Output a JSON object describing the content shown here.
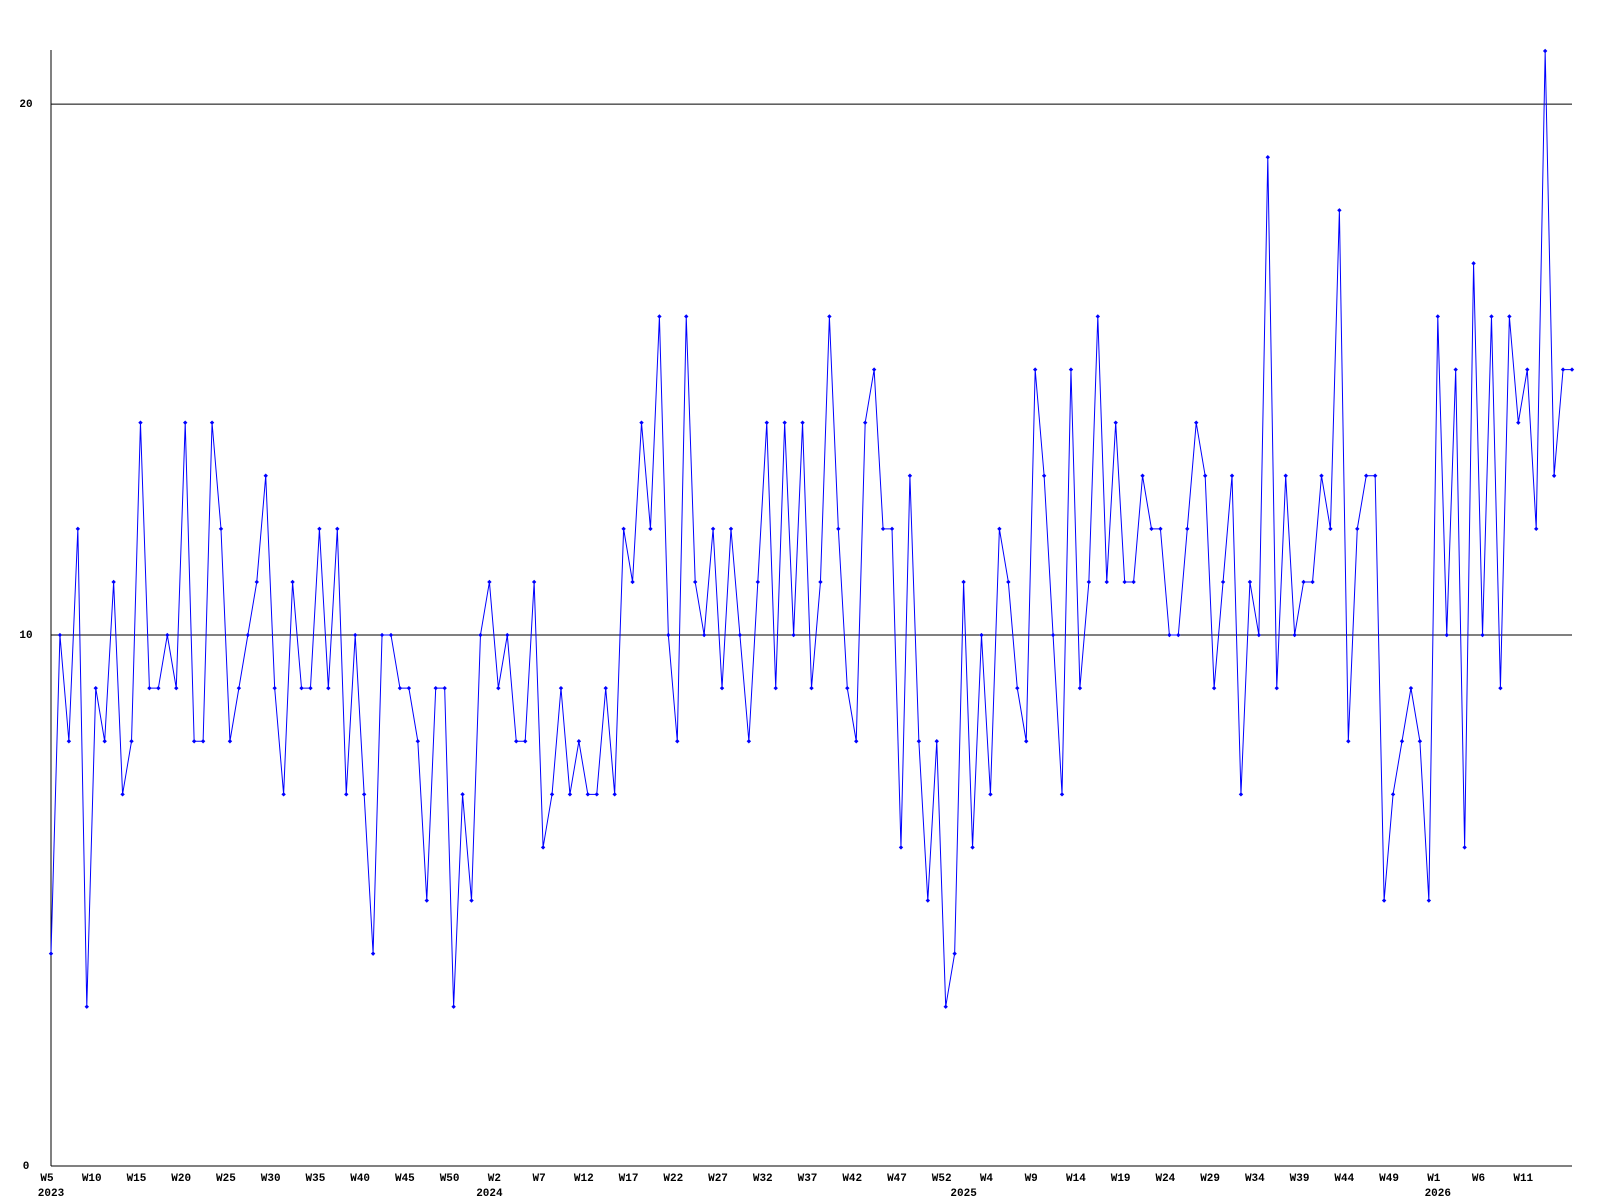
{
  "chart_data": {
    "type": "line",
    "categories": [
      "W5",
      null,
      null,
      null,
      null,
      "W10",
      null,
      null,
      null,
      null,
      "W15",
      null,
      null,
      null,
      null,
      "W20",
      null,
      null,
      null,
      null,
      "W25",
      null,
      null,
      null,
      null,
      "W30",
      null,
      null,
      null,
      null,
      "W35",
      null,
      null,
      null,
      null,
      "W40",
      null,
      null,
      null,
      null,
      "W45",
      null,
      null,
      null,
      null,
      "W50",
      null,
      null,
      null,
      null,
      "W2",
      null,
      null,
      null,
      null,
      "W7",
      null,
      null,
      null,
      null,
      "W12",
      null,
      null,
      null,
      null,
      "W17",
      null,
      null,
      null,
      null,
      "W22",
      null,
      null,
      null,
      null,
      "W27",
      null,
      null,
      null,
      null,
      "W32",
      null,
      null,
      null,
      null,
      "W37",
      null,
      null,
      null,
      null,
      "W42",
      null,
      null,
      null,
      null,
      "W47",
      null,
      null,
      null,
      null,
      "W52",
      null,
      null,
      null,
      null,
      "W4",
      null,
      null,
      null,
      null,
      "W9",
      null,
      null,
      null,
      null,
      "W14",
      null,
      null,
      null,
      null,
      "W19",
      null,
      null,
      null,
      null,
      "W24",
      null,
      null,
      null,
      null,
      "W29",
      null,
      null,
      null,
      null,
      "W34",
      null,
      null,
      null,
      null,
      "W39",
      null,
      null,
      null,
      null,
      "W44",
      null,
      null,
      null,
      null,
      "W49",
      null,
      null,
      null,
      null,
      "W1",
      null,
      null,
      null,
      null,
      "W6",
      null,
      null,
      null,
      null,
      "W11",
      null,
      null,
      null,
      null,
      null
    ],
    "x_year_labels": [
      "2023",
      null,
      null,
      null,
      null,
      null,
      null,
      null,
      null,
      null,
      null,
      null,
      null,
      null,
      null,
      null,
      null,
      null,
      null,
      null,
      null,
      null,
      null,
      null,
      null,
      null,
      null,
      null,
      null,
      null,
      null,
      null,
      null,
      null,
      null,
      null,
      null,
      null,
      null,
      null,
      null,
      null,
      null,
      null,
      null,
      null,
      null,
      null,
      null,
      "2024",
      null,
      null,
      null,
      null,
      null,
      null,
      null,
      null,
      null,
      null,
      null,
      null,
      null,
      null,
      null,
      null,
      null,
      null,
      null,
      null,
      null,
      null,
      null,
      null,
      null,
      null,
      null,
      null,
      null,
      null,
      null,
      null,
      null,
      null,
      null,
      null,
      null,
      null,
      null,
      null,
      null,
      null,
      null,
      null,
      null,
      null,
      null,
      null,
      null,
      null,
      null,
      null,
      "2025",
      null,
      null,
      null,
      null,
      null,
      null,
      null,
      null,
      null,
      null,
      null,
      null,
      null,
      null,
      null,
      null,
      null,
      null,
      null,
      null,
      null,
      null,
      null,
      null,
      null,
      null,
      null,
      null,
      null,
      null,
      null,
      null,
      null,
      null,
      null,
      null,
      null,
      null,
      null,
      null,
      null,
      null,
      null,
      null,
      null,
      null,
      null,
      null,
      null,
      null,
      null,
      null,
      "2026",
      null,
      null,
      null,
      null,
      null,
      null,
      null,
      null,
      null,
      null,
      null,
      null,
      null,
      null,
      null
    ],
    "series": [
      {
        "color": "#0000ff",
        "values": [
          4,
          10,
          8,
          12,
          3,
          9,
          8,
          11,
          7,
          8,
          14,
          9,
          9,
          10,
          9,
          14,
          8,
          8,
          14,
          12,
          8,
          9,
          10,
          11,
          13,
          9,
          7,
          11,
          9,
          9,
          12,
          9,
          12,
          7,
          10,
          7,
          4,
          10,
          10,
          9,
          9,
          8,
          5,
          9,
          9,
          3,
          7,
          5,
          10,
          11,
          9,
          10,
          8,
          8,
          11,
          6,
          7,
          9,
          7,
          8,
          7,
          7,
          9,
          7,
          12,
          11,
          14,
          12,
          16,
          10,
          8,
          16,
          11,
          10,
          12,
          9,
          12,
          10,
          8,
          11,
          14,
          9,
          14,
          10,
          14,
          9,
          11,
          16,
          12,
          9,
          8,
          14,
          15,
          12,
          12,
          6,
          13,
          8,
          5,
          8,
          3,
          4,
          11,
          6,
          10,
          7,
          12,
          11,
          9,
          8,
          15,
          13,
          10,
          7,
          15,
          9,
          11,
          16,
          11,
          14,
          11,
          11,
          13,
          12,
          12,
          10,
          10,
          12,
          14,
          13,
          9,
          11,
          13,
          7,
          11,
          10,
          19,
          9,
          13,
          10,
          11,
          11,
          13,
          12,
          18,
          8,
          12,
          13,
          13,
          5,
          7,
          8,
          9,
          8,
          5,
          16,
          10,
          15,
          6,
          17,
          10,
          16,
          9,
          16,
          14,
          15,
          12,
          21,
          13,
          15,
          15
        ]
      }
    ],
    "ylim": [
      0,
      21
    ],
    "yticks": [
      0,
      10,
      20
    ],
    "grid": true
  }
}
